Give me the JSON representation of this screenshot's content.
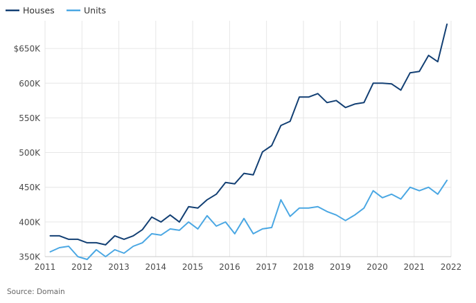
{
  "chart_data": {
    "type": "line",
    "title": "",
    "xlabel": "",
    "ylabel": "",
    "xlim": [
      2011,
      2022
    ],
    "ylim": [
      350,
      690
    ],
    "x_ticks": [
      2011,
      2012,
      2013,
      2014,
      2015,
      2016,
      2017,
      2018,
      2019,
      2020,
      2021,
      2022
    ],
    "x_tick_labels": [
      "2011",
      "2012",
      "2013",
      "2014",
      "2015",
      "2016",
      "2017",
      "2018",
      "2019",
      "2020",
      "2021",
      "2022"
    ],
    "y_ticks": [
      350,
      400,
      450,
      500,
      550,
      600,
      650
    ],
    "y_tick_labels": [
      "350K",
      "400K",
      "450K",
      "500K",
      "550K",
      "600K",
      "$650K"
    ],
    "grid": "vertical and horizontal",
    "legend_position": "top-left",
    "x": [
      2011.14,
      2011.39,
      2011.64,
      2011.89,
      2012.14,
      2012.39,
      2012.64,
      2012.89,
      2013.14,
      2013.39,
      2013.64,
      2013.89,
      2014.14,
      2014.39,
      2014.64,
      2014.89,
      2015.14,
      2015.39,
      2015.64,
      2015.89,
      2016.14,
      2016.39,
      2016.64,
      2016.89,
      2017.14,
      2017.39,
      2017.64,
      2017.89,
      2018.14,
      2018.39,
      2018.64,
      2018.89,
      2019.14,
      2019.39,
      2019.64,
      2019.89,
      2020.14,
      2020.39,
      2020.64,
      2020.89,
      2021.14,
      2021.39,
      2021.64,
      2021.89
    ],
    "series": [
      {
        "name": "Houses",
        "color": "#123f73",
        "values": [
          380,
          380,
          375,
          375,
          370,
          370,
          367,
          380,
          375,
          380,
          389,
          407,
          400,
          410,
          400,
          422,
          420,
          432,
          440,
          457,
          455,
          470,
          468,
          501,
          510,
          539,
          545,
          580,
          580,
          585,
          572,
          575,
          565,
          570,
          572,
          600,
          600,
          599,
          590,
          615,
          617,
          640,
          631,
          685
        ]
      },
      {
        "name": "Units",
        "color": "#4aa7e3",
        "values": [
          357,
          363,
          365,
          350,
          346,
          360,
          350,
          360,
          355,
          365,
          370,
          383,
          381,
          390,
          388,
          400,
          390,
          409,
          394,
          400,
          383,
          405,
          383,
          390,
          392,
          432,
          408,
          420,
          420,
          422,
          415,
          410,
          402,
          410,
          420,
          445,
          435,
          440,
          433,
          450,
          445,
          450,
          440,
          460
        ]
      }
    ]
  },
  "footer": {
    "source": "Source: Domain"
  },
  "colors": {
    "grid": "#e6e6e6",
    "axis": "#c8c8c8",
    "houses": "#123f73",
    "units": "#4aa7e3"
  }
}
